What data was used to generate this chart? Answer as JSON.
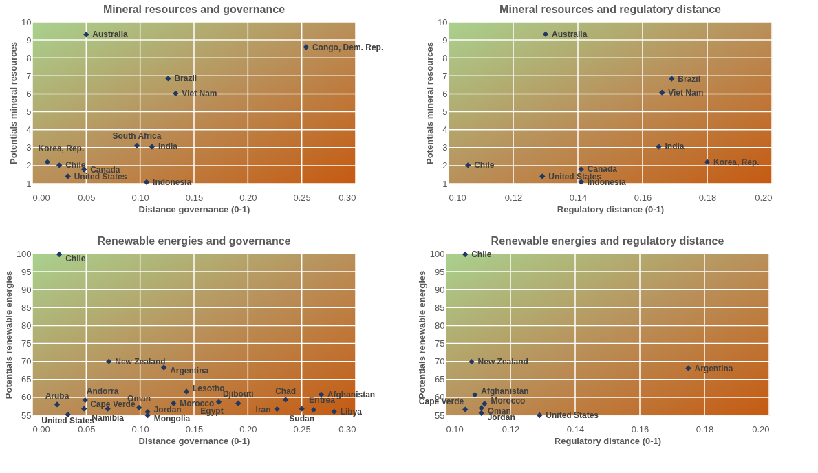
{
  "chart_data": [
    {
      "type": "scatter",
      "title": "Mineral resources and governance",
      "xlabel": "Distance governance (0-1)",
      "ylabel": "Potentials mineral resources",
      "marker": "diamond",
      "grid": true,
      "legend": false,
      "xlim": [
        0,
        0.3
      ],
      "xticks": [
        {
          "value": 0,
          "label": "0.00"
        },
        {
          "value": 0.05,
          "label": "0.05"
        },
        {
          "value": 0.1,
          "label": "0.10"
        },
        {
          "value": 0.15,
          "label": "0.15"
        },
        {
          "value": 0.2,
          "label": "0.20"
        },
        {
          "value": 0.25,
          "label": "0.25"
        },
        {
          "value": 0.3,
          "label": "0.30"
        }
      ],
      "ylim": [
        1,
        10
      ],
      "yticks": [
        1,
        2,
        3,
        4,
        5,
        6,
        7,
        8,
        9,
        10
      ],
      "series": [
        {
          "color": "#203864",
          "x": [
            0.05,
            0.254,
            0.126,
            0.133,
            0.097,
            0.111,
            0.014,
            0.025,
            0.048,
            0.033,
            0.106
          ],
          "values": [
            9.3,
            8.6,
            6.85,
            6.02,
            3.11,
            3.05,
            2.2,
            2.02,
            1.78,
            1.4,
            1.08
          ]
        }
      ],
      "annotations": [
        {
          "text": "Australia",
          "x": 0.05,
          "y": 9.3
        },
        {
          "text": "Congo, Dem. Rep.",
          "x": 0.254,
          "y": 8.6
        },
        {
          "text": "Brazil",
          "x": 0.126,
          "y": 6.85
        },
        {
          "text": "Viet Nam",
          "x": 0.133,
          "y": 6.02
        },
        {
          "text": "South Africa",
          "x": 0.097,
          "y": 3.11
        },
        {
          "text": "India",
          "x": 0.111,
          "y": 3.05
        },
        {
          "text": "Korea, Rep.",
          "x": 0.014,
          "y": 2.2
        },
        {
          "text": "Chile",
          "x": 0.025,
          "y": 2.02
        },
        {
          "text": "Canada",
          "x": 0.048,
          "y": 1.78
        },
        {
          "text": "United States",
          "x": 0.033,
          "y": 1.4
        },
        {
          "text": "Indonesia",
          "x": 0.106,
          "y": 1.08
        }
      ]
    },
    {
      "type": "scatter",
      "title": "Mineral resources and regulatory distance",
      "xlabel": "Regulatory distance (0-1)",
      "ylabel": "Potentials mineral resources",
      "marker": "diamond",
      "grid": true,
      "legend": false,
      "xlim": [
        0.1,
        0.2
      ],
      "xticks": [
        {
          "value": 0.1,
          "label": "0.10"
        },
        {
          "value": 0.12,
          "label": "0.12"
        },
        {
          "value": 0.14,
          "label": "0.14"
        },
        {
          "value": 0.16,
          "label": "0.16"
        },
        {
          "value": 0.18,
          "label": "0.18"
        },
        {
          "value": 0.2,
          "label": "0.20"
        }
      ],
      "ylim": [
        1,
        10
      ],
      "yticks": [
        1,
        2,
        3,
        4,
        5,
        6,
        7,
        8,
        9,
        10
      ],
      "series": [
        {
          "color": "#203864",
          "x": [
            0.13,
            0.169,
            0.166,
            0.165,
            0.18,
            0.106,
            0.141,
            0.129,
            0.141
          ],
          "values": [
            9.32,
            6.84,
            6.07,
            3.05,
            2.2,
            2.02,
            1.79,
            1.4,
            1.09
          ]
        }
      ],
      "annotations": [
        {
          "text": "Australia",
          "x": 0.13,
          "y": 9.32
        },
        {
          "text": "Brazil",
          "x": 0.169,
          "y": 6.84
        },
        {
          "text": "Viet Nam",
          "x": 0.166,
          "y": 6.07
        },
        {
          "text": "India",
          "x": 0.165,
          "y": 3.05
        },
        {
          "text": "Korea, Rep.",
          "x": 0.18,
          "y": 2.2
        },
        {
          "text": "Chile",
          "x": 0.106,
          "y": 2.02
        },
        {
          "text": "Canada",
          "x": 0.141,
          "y": 1.79
        },
        {
          "text": "United States",
          "x": 0.129,
          "y": 1.4
        },
        {
          "text": "Indonesia",
          "x": 0.141,
          "y": 1.09
        }
      ]
    },
    {
      "type": "scatter",
      "title": "Renewable energies and governance",
      "xlabel": "Distance governance (0-1)",
      "ylabel": "Potentials renewable energies",
      "marker": "diamond",
      "grid": true,
      "legend": false,
      "xlim": [
        0,
        0.3
      ],
      "xticks": [
        {
          "value": 0,
          "label": "0.00"
        },
        {
          "value": 0.05,
          "label": "0.05"
        },
        {
          "value": 0.1,
          "label": "0.10"
        },
        {
          "value": 0.15,
          "label": "0.15"
        },
        {
          "value": 0.2,
          "label": "0.20"
        },
        {
          "value": 0.25,
          "label": "0.25"
        },
        {
          "value": 0.3,
          "label": "0.30"
        }
      ],
      "ylim": [
        55,
        100
      ],
      "yticks": [
        55,
        60,
        65,
        70,
        75,
        80,
        85,
        90,
        95,
        100
      ],
      "series": [
        {
          "color": "#203864",
          "x": [
            0.025,
            0.071,
            0.122,
            0.143,
            0.023,
            0.049,
            0.033,
            0.048,
            0.07,
            0.099,
            0.107,
            0.107,
            0.131,
            0.173,
            0.191,
            0.227,
            0.235,
            0.25,
            0.261,
            0.268,
            0.28
          ],
          "values": [
            99.8,
            70,
            68.3,
            61.6,
            58,
            59.2,
            55.2,
            56.8,
            56.8,
            57.1,
            55.9,
            55,
            58.3,
            58.7,
            58.3,
            56.7,
            59.3,
            56.8,
            56.5,
            60.8,
            56
          ]
        }
      ],
      "annotations": [
        {
          "text": "Chile",
          "x": 0.025,
          "y": 99.8
        },
        {
          "text": "New Zealand",
          "x": 0.071,
          "y": 70
        },
        {
          "text": "Argentina",
          "x": 0.122,
          "y": 68.3
        },
        {
          "text": "Lesotho",
          "x": 0.143,
          "y": 61.6
        },
        {
          "text": "Aruba",
          "x": 0.023,
          "y": 58
        },
        {
          "text": "Andorra",
          "x": 0.049,
          "y": 59.2
        },
        {
          "text": "United States",
          "x": 0.033,
          "y": 55.2
        },
        {
          "text": "Cape Verde",
          "x": 0.048,
          "y": 56.8
        },
        {
          "text": "Namibia",
          "x": 0.07,
          "y": 56.8
        },
        {
          "text": "Oman",
          "x": 0.099,
          "y": 57.1
        },
        {
          "text": "Jordan",
          "x": 0.107,
          "y": 55.9
        },
        {
          "text": "Mongolia",
          "x": 0.107,
          "y": 55
        },
        {
          "text": "Morocco",
          "x": 0.131,
          "y": 58.3
        },
        {
          "text": "Egypt",
          "x": 0.173,
          "y": 58.7
        },
        {
          "text": "Djibouti",
          "x": 0.191,
          "y": 58.3
        },
        {
          "text": "Iran",
          "x": 0.227,
          "y": 56.7
        },
        {
          "text": "Chad",
          "x": 0.235,
          "y": 59.3
        },
        {
          "text": "Sudan",
          "x": 0.25,
          "y": 56.8
        },
        {
          "text": "Eritrea",
          "x": 0.261,
          "y": 56.5
        },
        {
          "text": "Afghanistan",
          "x": 0.268,
          "y": 60.8
        },
        {
          "text": "Libya",
          "x": 0.28,
          "y": 56
        }
      ]
    },
    {
      "type": "scatter",
      "title": "Renewable energies and regulatory distance",
      "xlabel": "Regulatory distance (0-1)",
      "ylabel": "Potentials renewable energies",
      "marker": "diamond",
      "grid": true,
      "legend": false,
      "xlim": [
        0.1,
        0.2
      ],
      "xticks": [
        {
          "value": 0.1,
          "label": "0.10"
        },
        {
          "value": 0.12,
          "label": "0.12"
        },
        {
          "value": 0.14,
          "label": "0.14"
        },
        {
          "value": 0.16,
          "label": "0.16"
        },
        {
          "value": 0.18,
          "label": "0.18"
        },
        {
          "value": 0.2,
          "label": "0.20"
        }
      ],
      "ylim": [
        55,
        100
      ],
      "yticks": [
        55,
        60,
        65,
        70,
        75,
        80,
        85,
        90,
        95,
        100
      ],
      "series": [
        {
          "color": "#203864",
          "x": [
            0.106,
            0.108,
            0.175,
            0.109,
            0.112,
            0.111,
            0.106,
            0.111,
            0.129
          ],
          "values": [
            99.8,
            69.9,
            68.1,
            60.7,
            58.2,
            57,
            56.6,
            55.6,
            55
          ]
        }
      ],
      "annotations": [
        {
          "text": "Chile",
          "x": 0.106,
          "y": 99.8
        },
        {
          "text": "New Zealand",
          "x": 0.108,
          "y": 69.9
        },
        {
          "text": "Argentina",
          "x": 0.175,
          "y": 68.1
        },
        {
          "text": "Afghanistan",
          "x": 0.109,
          "y": 60.7
        },
        {
          "text": "Morocco",
          "x": 0.112,
          "y": 58.2
        },
        {
          "text": "Oman",
          "x": 0.111,
          "y": 57
        },
        {
          "text": "Cape Verde",
          "x": 0.106,
          "y": 56.6
        },
        {
          "text": "Jordan",
          "x": 0.111,
          "y": 55.6
        },
        {
          "text": "United States",
          "x": 0.129,
          "y": 55
        }
      ]
    }
  ]
}
